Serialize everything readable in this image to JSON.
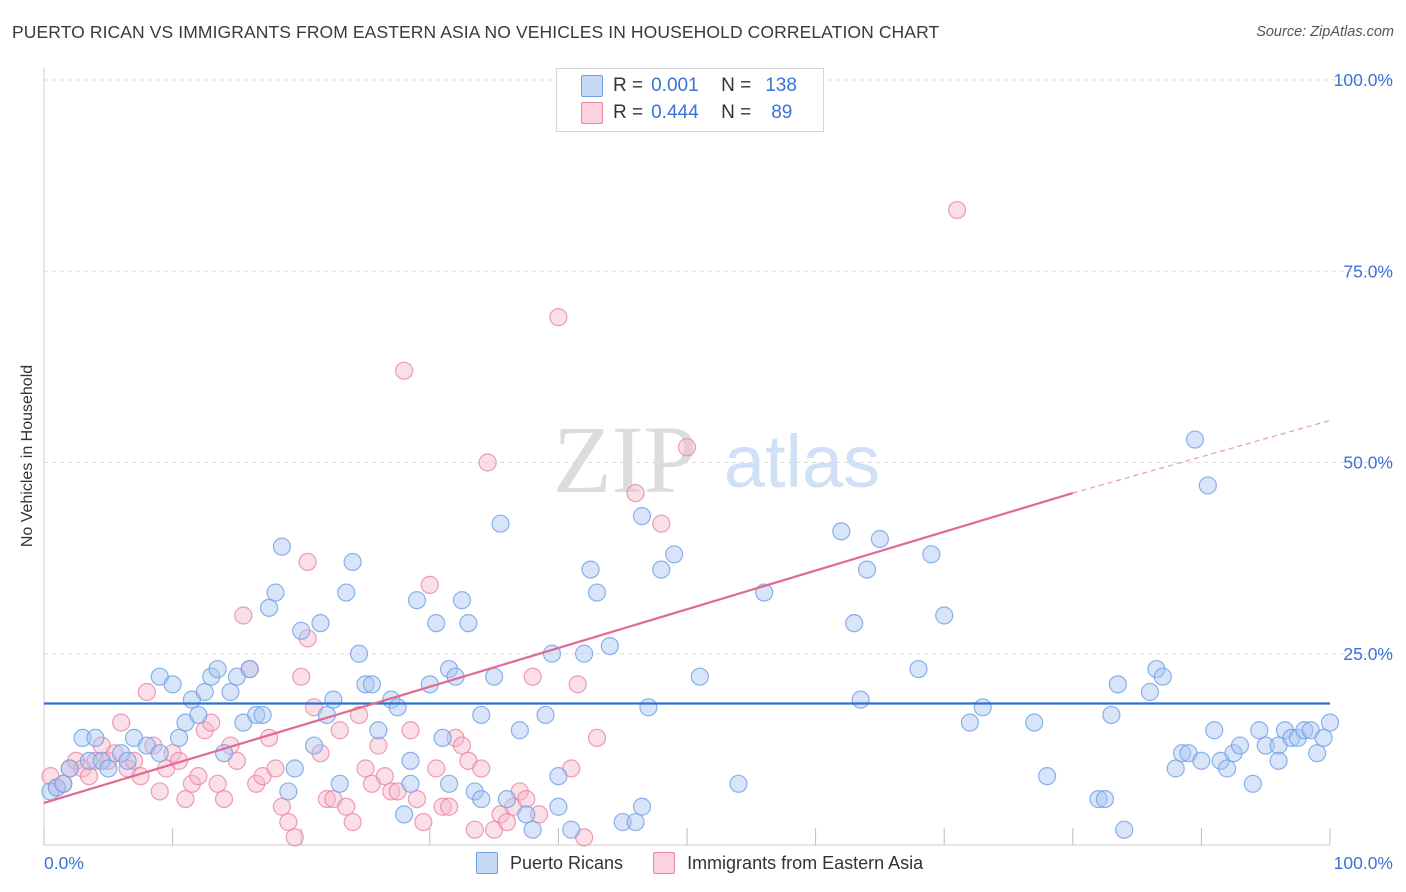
{
  "header": {
    "title": "PUERTO RICAN VS IMMIGRANTS FROM EASTERN ASIA NO VEHICLES IN HOUSEHOLD CORRELATION CHART",
    "source": "Source: ZipAtlas.com"
  },
  "watermark": {
    "zip": "ZIP",
    "atlas": "atlas"
  },
  "legend_box": {
    "rows": [
      {
        "r_label": "R =",
        "r_value": "0.001",
        "n_label": "N =",
        "n_value": "138",
        "color": "#a9c6f2"
      },
      {
        "r_label": "R =",
        "r_value": "0.444",
        "n_label": "N =",
        "n_value": "89",
        "color": "#f7b8ca"
      }
    ]
  },
  "bottom_legend": [
    {
      "label": "Puerto Ricans",
      "color": "#a9c6f2"
    },
    {
      "label": "Immigrants from Eastern Asia",
      "color": "#f7b8ca"
    }
  ],
  "chart_data": {
    "type": "scatter",
    "title": "PUERTO RICAN VS IMMIGRANTS FROM EASTERN ASIA NO VEHICLES IN HOUSEHOLD CORRELATION CHART",
    "ylabel": "No Vehicles in Household",
    "xlim": [
      0,
      100
    ],
    "ylim": [
      0,
      100
    ],
    "x_tick_labels": [
      "0.0%",
      "100.0%"
    ],
    "y_ticks": [
      25,
      50,
      75,
      100
    ],
    "y_tick_labels": [
      "25.0%",
      "50.0%",
      "75.0%",
      "100.0%"
    ],
    "grid": "dashed horizontal",
    "legend_position": "top-center",
    "series": [
      {
        "name": "Puerto Ricans",
        "color": "#6f9fe6",
        "fill": "#a9c6f2",
        "r": 0.001,
        "n": 138,
        "trend": {
          "x0": 0,
          "y0": 18.5,
          "x1": 100,
          "y1": 18.5
        },
        "points": [
          [
            0.5,
            7
          ],
          [
            1,
            7.5
          ],
          [
            1.5,
            8
          ],
          [
            2,
            10
          ],
          [
            3,
            14
          ],
          [
            3.5,
            11
          ],
          [
            4,
            14
          ],
          [
            4.5,
            11
          ],
          [
            5,
            10
          ],
          [
            6,
            12
          ],
          [
            6.5,
            11
          ],
          [
            7,
            14
          ],
          [
            8,
            13
          ],
          [
            9,
            12
          ],
          [
            9,
            22
          ],
          [
            10,
            21
          ],
          [
            10.5,
            14
          ],
          [
            11,
            16
          ],
          [
            11.5,
            19
          ],
          [
            12,
            17
          ],
          [
            12.5,
            20
          ],
          [
            13,
            22
          ],
          [
            13.5,
            23
          ],
          [
            14,
            12
          ],
          [
            14.5,
            20
          ],
          [
            15,
            22
          ],
          [
            15.5,
            16
          ],
          [
            16,
            23
          ],
          [
            16.5,
            17
          ],
          [
            17,
            17
          ],
          [
            17.5,
            31
          ],
          [
            18,
            33
          ],
          [
            18.5,
            39
          ],
          [
            19,
            7
          ],
          [
            19.5,
            10
          ],
          [
            20,
            28
          ],
          [
            21,
            13
          ],
          [
            21.5,
            29
          ],
          [
            22,
            17
          ],
          [
            22.5,
            19
          ],
          [
            23,
            8
          ],
          [
            23.5,
            33
          ],
          [
            24,
            37
          ],
          [
            24.5,
            25
          ],
          [
            25,
            21
          ],
          [
            25.5,
            21
          ],
          [
            26,
            15
          ],
          [
            27,
            19
          ],
          [
            27.5,
            18
          ],
          [
            28,
            4
          ],
          [
            28.5,
            11
          ],
          [
            28.5,
            8
          ],
          [
            29,
            32
          ],
          [
            30,
            21
          ],
          [
            30.5,
            29
          ],
          [
            31,
            14
          ],
          [
            31.5,
            23
          ],
          [
            31.5,
            8
          ],
          [
            32,
            22
          ],
          [
            32.5,
            32
          ],
          [
            33,
            29
          ],
          [
            33.5,
            7
          ],
          [
            34,
            6
          ],
          [
            34,
            17
          ],
          [
            35,
            22
          ],
          [
            35.5,
            42
          ],
          [
            36,
            6
          ],
          [
            37,
            15
          ],
          [
            37.5,
            4
          ],
          [
            38,
            2
          ],
          [
            39,
            17
          ],
          [
            39.5,
            25
          ],
          [
            40,
            5
          ],
          [
            40,
            9
          ],
          [
            41,
            2
          ],
          [
            42,
            25
          ],
          [
            42.5,
            36
          ],
          [
            43,
            33
          ],
          [
            44,
            26
          ],
          [
            45,
            3
          ],
          [
            46,
            3
          ],
          [
            46.5,
            5
          ],
          [
            46.5,
            43
          ],
          [
            47,
            18
          ],
          [
            48,
            36
          ],
          [
            49,
            38
          ],
          [
            51,
            22
          ],
          [
            54,
            8
          ],
          [
            56,
            33
          ],
          [
            62,
            41
          ],
          [
            63,
            29
          ],
          [
            63.5,
            19
          ],
          [
            64,
            36
          ],
          [
            65,
            40
          ],
          [
            68,
            23
          ],
          [
            69,
            38
          ],
          [
            70,
            30
          ],
          [
            72,
            16
          ],
          [
            73,
            18
          ],
          [
            77,
            16
          ],
          [
            78,
            9
          ],
          [
            82,
            6
          ],
          [
            82.5,
            6
          ],
          [
            83,
            17
          ],
          [
            83.5,
            21
          ],
          [
            84,
            2
          ],
          [
            86,
            20
          ],
          [
            86.5,
            23
          ],
          [
            87,
            22
          ],
          [
            88,
            10
          ],
          [
            88.5,
            12
          ],
          [
            89,
            12
          ],
          [
            89.5,
            53
          ],
          [
            90,
            11
          ],
          [
            90.5,
            47
          ],
          [
            91,
            15
          ],
          [
            91.5,
            11
          ],
          [
            92,
            10
          ],
          [
            92.5,
            12
          ],
          [
            93,
            13
          ],
          [
            94,
            8
          ],
          [
            94.5,
            15
          ],
          [
            95,
            13
          ],
          [
            96,
            13
          ],
          [
            96,
            11
          ],
          [
            96.5,
            15
          ],
          [
            97,
            14
          ],
          [
            97.5,
            14
          ],
          [
            98,
            15
          ],
          [
            98.5,
            15
          ],
          [
            99,
            12
          ],
          [
            99.5,
            14
          ],
          [
            100,
            16
          ]
        ]
      },
      {
        "name": "Immigrants from Eastern Asia",
        "color": "#ea84a4",
        "fill": "#f7b8ca",
        "r": 0.444,
        "n": 89,
        "trend": {
          "x0": 0,
          "y0": 5.5,
          "x1": 80,
          "y1": 46,
          "dash_to_x": 100,
          "dash_to_y": 55.5
        },
        "points": [
          [
            0.5,
            9
          ],
          [
            1,
            7.5
          ],
          [
            1.5,
            8
          ],
          [
            2,
            10
          ],
          [
            2.5,
            11
          ],
          [
            3,
            10
          ],
          [
            3.5,
            9
          ],
          [
            4,
            11
          ],
          [
            4.5,
            13
          ],
          [
            5,
            11
          ],
          [
            5.5,
            12
          ],
          [
            6,
            16
          ],
          [
            6.5,
            10
          ],
          [
            7,
            11
          ],
          [
            7.5,
            9
          ],
          [
            8,
            20
          ],
          [
            8.5,
            13
          ],
          [
            9,
            7
          ],
          [
            9.5,
            10
          ],
          [
            10,
            12
          ],
          [
            10.5,
            11
          ],
          [
            11,
            6
          ],
          [
            11.5,
            8
          ],
          [
            12,
            9
          ],
          [
            12.5,
            15
          ],
          [
            13,
            16
          ],
          [
            13.5,
            8
          ],
          [
            14,
            6
          ],
          [
            14.5,
            13
          ],
          [
            15,
            11
          ],
          [
            15.5,
            30
          ],
          [
            16,
            23
          ],
          [
            16.5,
            8
          ],
          [
            17,
            9
          ],
          [
            17.5,
            14
          ],
          [
            18,
            10
          ],
          [
            18.5,
            5
          ],
          [
            19,
            3
          ],
          [
            19.5,
            1
          ],
          [
            20,
            22
          ],
          [
            20.5,
            27
          ],
          [
            20.5,
            37
          ],
          [
            21,
            18
          ],
          [
            21.5,
            12
          ],
          [
            22,
            6
          ],
          [
            22.5,
            6
          ],
          [
            23,
            15
          ],
          [
            23.5,
            5
          ],
          [
            24,
            3
          ],
          [
            24.5,
            17
          ],
          [
            25,
            10
          ],
          [
            25.5,
            8
          ],
          [
            26,
            13
          ],
          [
            26.5,
            9
          ],
          [
            27,
            7
          ],
          [
            27.5,
            7
          ],
          [
            28,
            62
          ],
          [
            28.5,
            15
          ],
          [
            29,
            6
          ],
          [
            29.5,
            3
          ],
          [
            30,
            34
          ],
          [
            30.5,
            10
          ],
          [
            31,
            5
          ],
          [
            31.5,
            5
          ],
          [
            32,
            14
          ],
          [
            32.5,
            13
          ],
          [
            33,
            11
          ],
          [
            33.5,
            2
          ],
          [
            34,
            10
          ],
          [
            34.5,
            50
          ],
          [
            35,
            2
          ],
          [
            35.5,
            4
          ],
          [
            36,
            3
          ],
          [
            36.5,
            5
          ],
          [
            37,
            7
          ],
          [
            37.5,
            6
          ],
          [
            38,
            22
          ],
          [
            38.5,
            4
          ],
          [
            40,
            69
          ],
          [
            41,
            10
          ],
          [
            41.5,
            21
          ],
          [
            42,
            1
          ],
          [
            43,
            14
          ],
          [
            46,
            46
          ],
          [
            48,
            42
          ],
          [
            50,
            52
          ],
          [
            71,
            83
          ]
        ]
      }
    ]
  }
}
